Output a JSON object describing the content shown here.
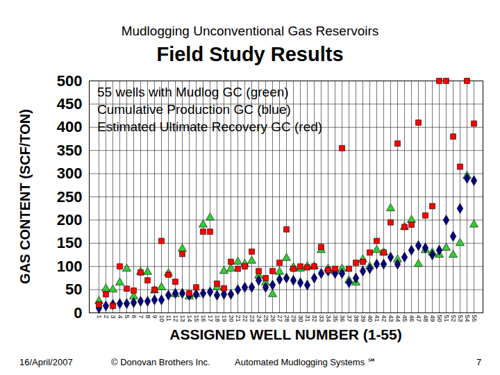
{
  "chart_data": {
    "type": "scatter",
    "title": "Mudlogging Unconventional Gas Reservoirs",
    "subtitle": "Field Study Results",
    "x_label": "ASSIGNED WELL NUMBER (1-55)",
    "y_label": "GAS CONTENT (SCF/TON)",
    "categories": [
      1,
      2,
      3,
      4,
      5,
      6,
      7,
      8,
      9,
      10,
      11,
      12,
      13,
      14,
      15,
      16,
      17,
      18,
      19,
      20,
      21,
      22,
      23,
      24,
      25,
      26,
      27,
      28,
      29,
      30,
      31,
      32,
      33,
      34,
      35,
      36,
      37,
      38,
      39,
      40,
      41,
      42,
      43,
      44,
      45,
      46,
      47,
      48,
      49,
      50,
      51,
      52,
      53,
      54,
      55
    ],
    "series": [
      {
        "name": "55 wells with Mudlog GC (green)",
        "color": "#33cc33",
        "marker": "triangle",
        "values": [
          25,
          52,
          50,
          65,
          95,
          35,
          88,
          88,
          48,
          55,
          85,
          40,
          138,
          35,
          40,
          190,
          205,
          55,
          90,
          95,
          110,
          105,
          112,
          80,
          65,
          40,
          88,
          118,
          98,
          95,
          100,
          100,
          135,
          95,
          90,
          95,
          70,
          65,
          115,
          100,
          135,
          130,
          225,
          115,
          185,
          200,
          105,
          135,
          130,
          125,
          140,
          125,
          150,
          295,
          190
        ]
      },
      {
        "name": "Cumulative Production GC (blue)",
        "color": "#000080",
        "marker": "diamond",
        "values": [
          10,
          15,
          18,
          20,
          20,
          22,
          25,
          25,
          28,
          28,
          38,
          42,
          42,
          38,
          40,
          42,
          45,
          38,
          40,
          40,
          50,
          55,
          55,
          70,
          55,
          60,
          72,
          75,
          70,
          65,
          60,
          75,
          85,
          90,
          85,
          85,
          65,
          75,
          90,
          95,
          105,
          105,
          120,
          105,
          120,
          135,
          145,
          140,
          125,
          135,
          200,
          165,
          225,
          290,
          285
        ]
      },
      {
        "name": "Estimated Ultimate Recovery GC (red)",
        "color": "#ff0000",
        "marker": "square",
        "values": [
          18,
          40,
          15,
          100,
          52,
          48,
          87,
          70,
          50,
          155,
          82,
          67,
          127,
          42,
          55,
          175,
          175,
          63,
          53,
          110,
          95,
          100,
          132,
          90,
          75,
          90,
          108,
          180,
          95,
          100,
          98,
          100,
          142,
          92,
          95,
          355,
          95,
          108,
          110,
          130,
          155,
          130,
          195,
          365,
          185,
          190,
          410,
          210,
          230,
          500,
          500,
          380,
          315,
          500,
          408
        ]
      }
    ],
    "ylim": [
      0,
      500
    ],
    "yticks": [
      0,
      50,
      100,
      150,
      200,
      250,
      300,
      350,
      400,
      450,
      500
    ],
    "grid": true,
    "legend": "top-left"
  },
  "footer": {
    "date": "16/April/2007",
    "copyright": "© Donovan Brothers Inc.",
    "system": "Automated Mudlogging Systems ℠",
    "page": "7"
  }
}
